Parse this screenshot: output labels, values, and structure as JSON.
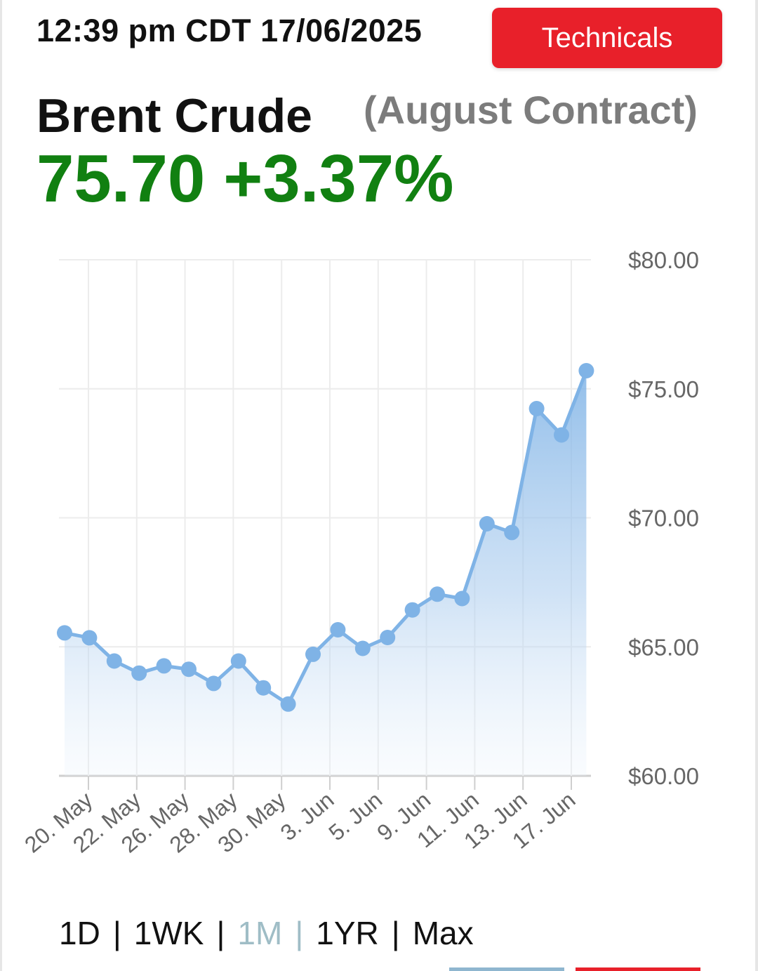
{
  "header": {
    "timestamp": "12:39 pm CDT 17/06/2025",
    "technicals_label": "Technicals"
  },
  "quote": {
    "name": "Brent Crude",
    "contract": "(August Contract)",
    "price": "75.70",
    "change": "+3.37%",
    "change_color": "#118011"
  },
  "range_selector": {
    "options": [
      "1D",
      "1WK",
      "1M",
      "1YR",
      "Max"
    ],
    "separator": "|",
    "active": "1M"
  },
  "colors": {
    "accent_red": "#e8202a",
    "line": "#7fb3e6",
    "active_option": "#9fbdc6"
  },
  "chart_data": {
    "type": "area",
    "title": "",
    "xlabel": "",
    "ylabel": "",
    "ylim": [
      60,
      80
    ],
    "y_ticks": [
      "$80.00",
      "$75.00",
      "$70.00",
      "$65.00",
      "$60.00"
    ],
    "y_tick_values": [
      80,
      75,
      70,
      65,
      60
    ],
    "x_tick_labels": [
      "20. May",
      "22. May",
      "26. May",
      "28. May",
      "30. May",
      "3. Jun",
      "5. Jun",
      "9. Jun",
      "11. Jun",
      "13. Jun",
      "17. Jun"
    ],
    "x_tick_indices": [
      1,
      3,
      5,
      7,
      9,
      11,
      13,
      15,
      17,
      19,
      21
    ],
    "grid": true,
    "series": [
      {
        "values": [
          65.54,
          65.35,
          64.45,
          63.98,
          64.26,
          64.13,
          63.58,
          64.45,
          63.41,
          62.78,
          64.71,
          65.66,
          64.94,
          65.36,
          66.43,
          67.04,
          66.87,
          69.77,
          69.43,
          74.23,
          73.21,
          75.7
        ]
      }
    ]
  }
}
